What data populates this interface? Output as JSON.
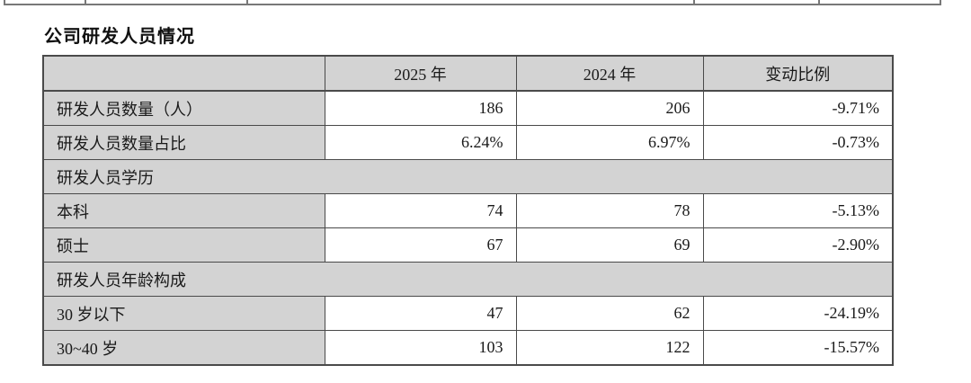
{
  "title": "公司研发人员情况",
  "table": {
    "columns": [
      "",
      "2025 年",
      "2024 年",
      "变动比例"
    ],
    "rows": [
      {
        "type": "data",
        "label": "研发人员数量（人）",
        "y2025": "186",
        "y2024": "206",
        "change": "-9.71%"
      },
      {
        "type": "data",
        "label": "研发人员数量占比",
        "y2025": "6.24%",
        "y2024": "6.97%",
        "change": "-0.73%"
      },
      {
        "type": "section",
        "label": "研发人员学历"
      },
      {
        "type": "data",
        "label": "本科",
        "y2025": "74",
        "y2024": "78",
        "change": "-5.13%"
      },
      {
        "type": "data",
        "label": "硕士",
        "y2025": "67",
        "y2024": "69",
        "change": "-2.90%"
      },
      {
        "type": "section",
        "label": "研发人员年龄构成"
      },
      {
        "type": "data",
        "label": "30 岁以下",
        "y2025": "47",
        "y2024": "62",
        "change": "-24.19%"
      },
      {
        "type": "data",
        "label": "30~40 岁",
        "y2025": "103",
        "y2024": "122",
        "change": "-15.57%"
      }
    ],
    "colors": {
      "header_fill": "#d3d3d3",
      "label_fill": "#d3d3d3",
      "section_fill": "#d3d3d3",
      "border": "#4a4a4a",
      "text": "#1a1a1a"
    }
  }
}
